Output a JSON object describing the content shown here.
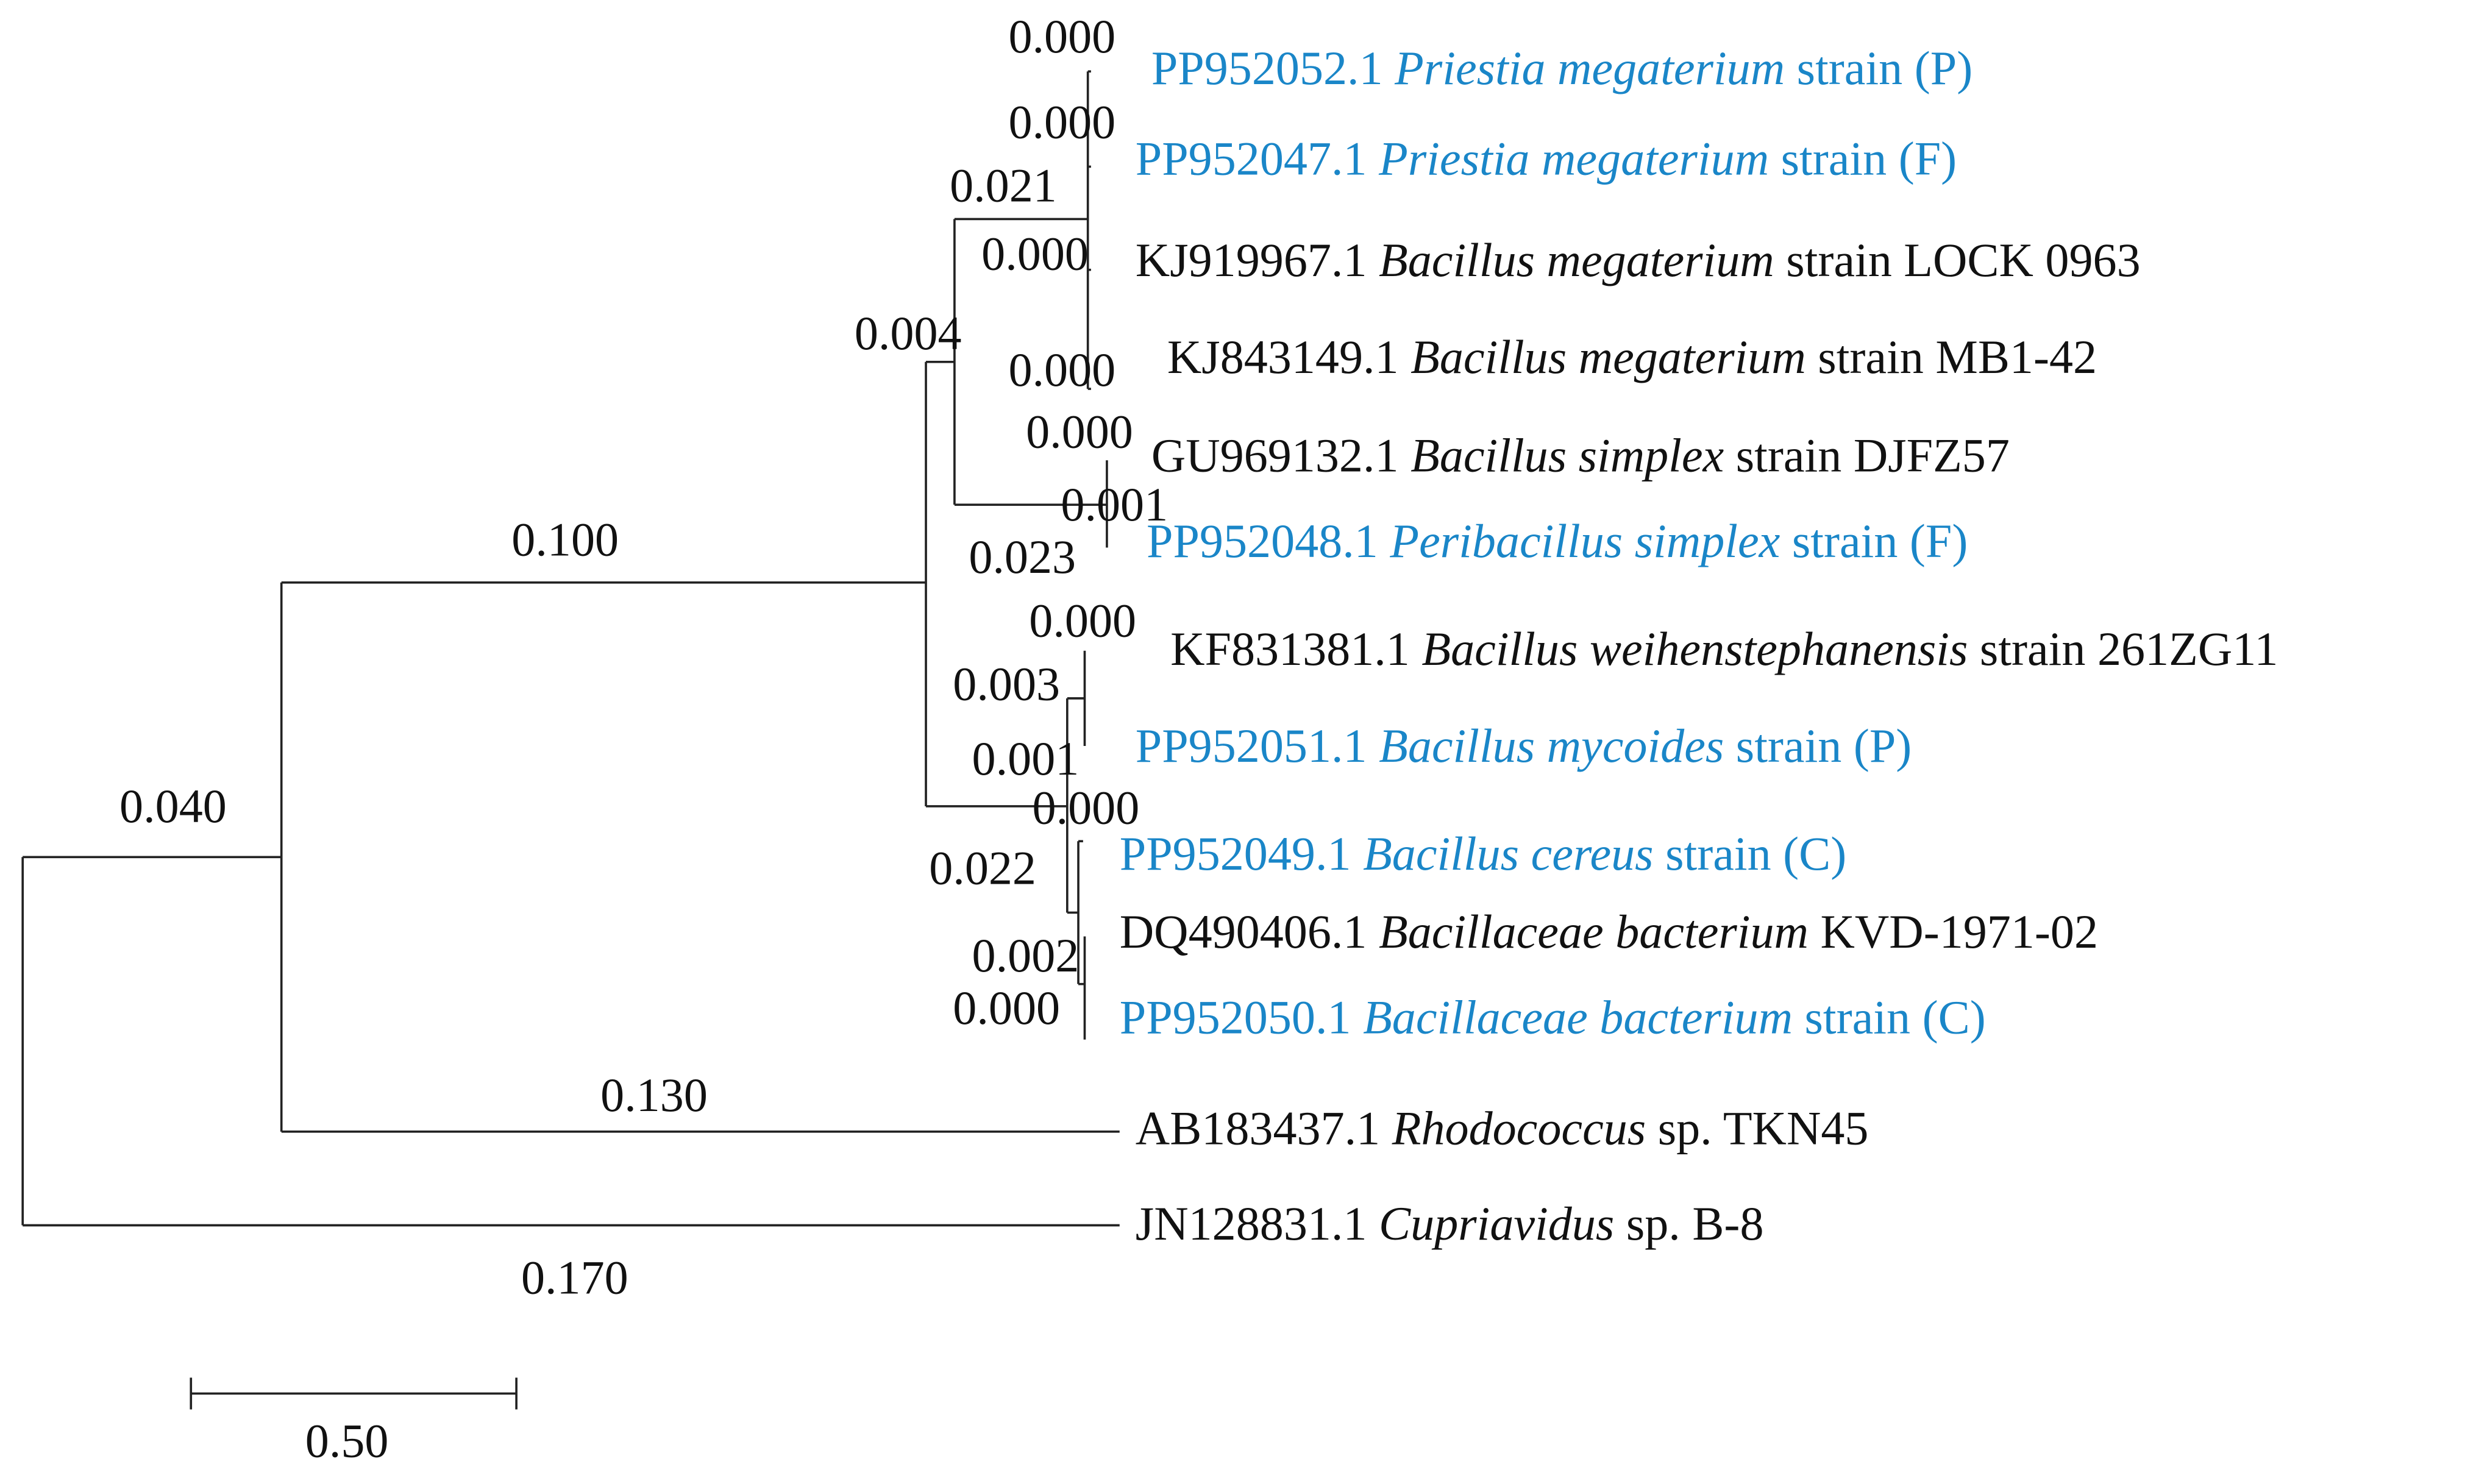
{
  "leaves": [
    {
      "accession": "PP952052.1",
      "species": "Priestia megaterium",
      "suffix": "strain  (P)",
      "color": "#1a86c8"
    },
    {
      "accession": "PP952047.1",
      "species": "Priestia megaterium",
      "suffix": "strain (F)",
      "color": "#1a86c8"
    },
    {
      "accession": "KJ919967.1",
      "species": "Bacillus megaterium",
      "suffix": "strain LOCK 0963",
      "color": "#111111"
    },
    {
      "accession": "KJ843149.1",
      "species": "Bacillus megaterium",
      "suffix": "strain MB1-42",
      "color": "#111111"
    },
    {
      "accession": "GU969132.1",
      "species": "Bacillus simplex",
      "suffix": "strain DJFZ57",
      "color": "#111111"
    },
    {
      "accession": "PP952048.1",
      "species": "Peribacillus simplex",
      "suffix": "strain (F)",
      "color": "#1a86c8"
    },
    {
      "accession": "KF831381.1",
      "species": "Bacillus weihenstephanensis",
      "suffix": "strain 261ZG11",
      "color": "#111111"
    },
    {
      "accession": "PP952051.1",
      "species": "Bacillus mycoides",
      "suffix": "strain (P)",
      "color": "#1a86c8"
    },
    {
      "accession": "PP952049.1",
      "species": "Bacillus cereus",
      "suffix": "strain (C)",
      "color": "#1a86c8"
    },
    {
      "accession": "DQ490406.1",
      "species": "Bacillaceae bacterium",
      "suffix": "KVD-1971-02",
      "color": "#111111"
    },
    {
      "accession": "PP952050.1",
      "species": "Bacillaceae bacterium",
      "suffix": "strain (C)",
      "color": "#1a86c8"
    },
    {
      "accession": "AB183437.1",
      "species": "Rhodococcus",
      "suffix": "sp. TKN45",
      "color": "#111111"
    },
    {
      "accession": "JN128831.1",
      "species": "Cupriavidus",
      "suffix": "sp. B-8",
      "color": "#111111"
    }
  ],
  "branch_labels": [
    "0.000",
    "0.000",
    "0.021",
    "0.000",
    "0.004",
    "0.000",
    "0.000",
    "0.001",
    "0.023",
    "0.100",
    "0.000",
    "0.003",
    "0.001",
    "0.000",
    "0.022",
    "0.002",
    "0.000",
    "0.040",
    "0.130",
    "0.170"
  ],
  "scale_bar": {
    "label": "0.50"
  }
}
